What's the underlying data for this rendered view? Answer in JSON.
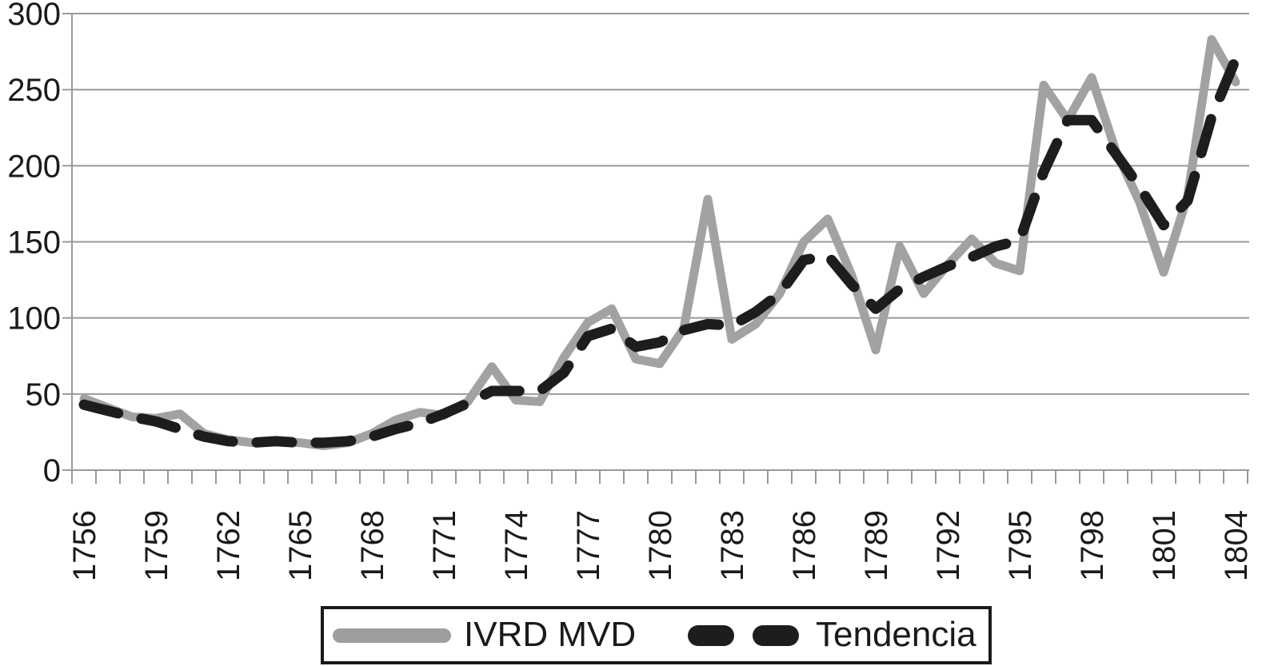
{
  "chart_data": {
    "type": "line",
    "title": "",
    "xlabel": "",
    "ylabel": "",
    "x": [
      1756,
      1757,
      1758,
      1759,
      1760,
      1761,
      1762,
      1763,
      1764,
      1765,
      1766,
      1767,
      1768,
      1769,
      1770,
      1771,
      1772,
      1773,
      1774,
      1775,
      1776,
      1777,
      1778,
      1779,
      1780,
      1781,
      1782,
      1783,
      1784,
      1785,
      1786,
      1787,
      1788,
      1789,
      1790,
      1791,
      1792,
      1793,
      1794,
      1795,
      1796,
      1797,
      1798,
      1799,
      1800,
      1801,
      1802,
      1803,
      1804
    ],
    "x_tick_labels": [
      "1756",
      "1759",
      "1762",
      "1765",
      "1768",
      "1771",
      "1774",
      "1777",
      "1780",
      "1783",
      "1786",
      "1789",
      "1792",
      "1795",
      "1798",
      "1801",
      "1804"
    ],
    "y_ticks": [
      0,
      50,
      100,
      150,
      200,
      250,
      300
    ],
    "ylim": [
      0,
      300
    ],
    "grid": "horizontal",
    "legend_position": "bottom",
    "series": [
      {
        "name": "IVRD MVD",
        "style": "solid",
        "color": "#a2a2a2",
        "values": [
          47,
          41,
          35,
          34,
          37,
          24,
          20,
          18,
          19,
          18,
          16,
          18,
          24,
          33,
          38,
          36,
          45,
          68,
          46,
          45,
          74,
          97,
          106,
          73,
          70,
          93,
          178,
          86,
          96,
          116,
          150,
          165,
          128,
          79,
          147,
          116,
          135,
          152,
          136,
          131,
          253,
          230,
          258,
          210,
          176,
          130,
          180,
          283,
          255
        ]
      },
      {
        "name": "Tendencia",
        "style": "dashed",
        "color": "#1d1d1d",
        "values": [
          43,
          39,
          35,
          32,
          27,
          22,
          19,
          18,
          19,
          18,
          18,
          19,
          22,
          27,
          31,
          37,
          44,
          52,
          52,
          52,
          64,
          88,
          93,
          81,
          84,
          92,
          96,
          95,
          104,
          116,
          138,
          141,
          122,
          106,
          119,
          127,
          134,
          140,
          147,
          151,
          196,
          230,
          230,
          208,
          186,
          161,
          177,
          232,
          270
        ]
      }
    ]
  },
  "colors": {
    "gridline": "#999999",
    "axis_text": "#1a1a1a",
    "background": "#ffffff"
  }
}
